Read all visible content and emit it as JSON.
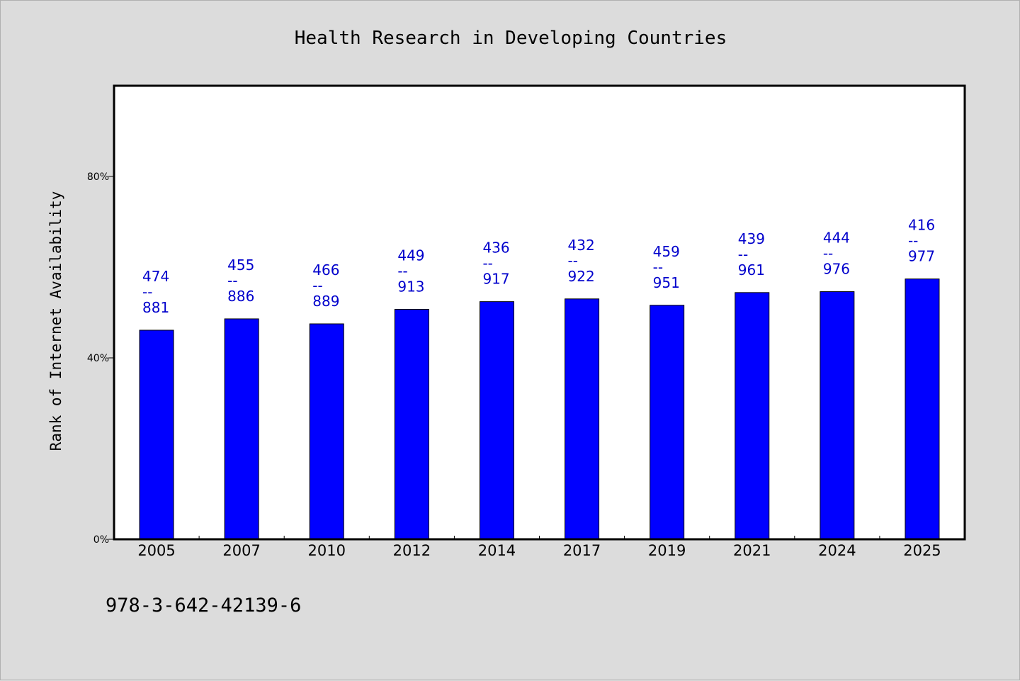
{
  "chart_data": {
    "type": "bar",
    "title": "Health Research in Developing Countries",
    "ylabel": "Rank of Internet Availability",
    "xlabel": "",
    "ylim": [
      0,
      100
    ],
    "yticks": [
      0,
      40,
      80
    ],
    "ytick_labels": [
      "0%",
      "40%",
      "80%"
    ],
    "grid": false,
    "bar_color": "#0000ff",
    "label_color": "#0000cc",
    "categories": [
      "2005",
      "2007",
      "2010",
      "2012",
      "2014",
      "2017",
      "2019",
      "2021",
      "2024",
      "2025"
    ],
    "values": [
      46.1,
      48.6,
      47.5,
      50.7,
      52.4,
      53.0,
      51.6,
      54.4,
      54.6,
      57.4
    ],
    "data_labels": [
      [
        "474",
        "--",
        "881"
      ],
      [
        "455",
        "--",
        "886"
      ],
      [
        "466",
        "--",
        "889"
      ],
      [
        "449",
        "--",
        "913"
      ],
      [
        "436",
        "--",
        "917"
      ],
      [
        "432",
        "--",
        "922"
      ],
      [
        "459",
        "--",
        "951"
      ],
      [
        "439",
        "--",
        "961"
      ],
      [
        "444",
        "--",
        "976"
      ],
      [
        "416",
        "--",
        "977"
      ]
    ]
  },
  "footnote": "978-3-642-42139-6"
}
